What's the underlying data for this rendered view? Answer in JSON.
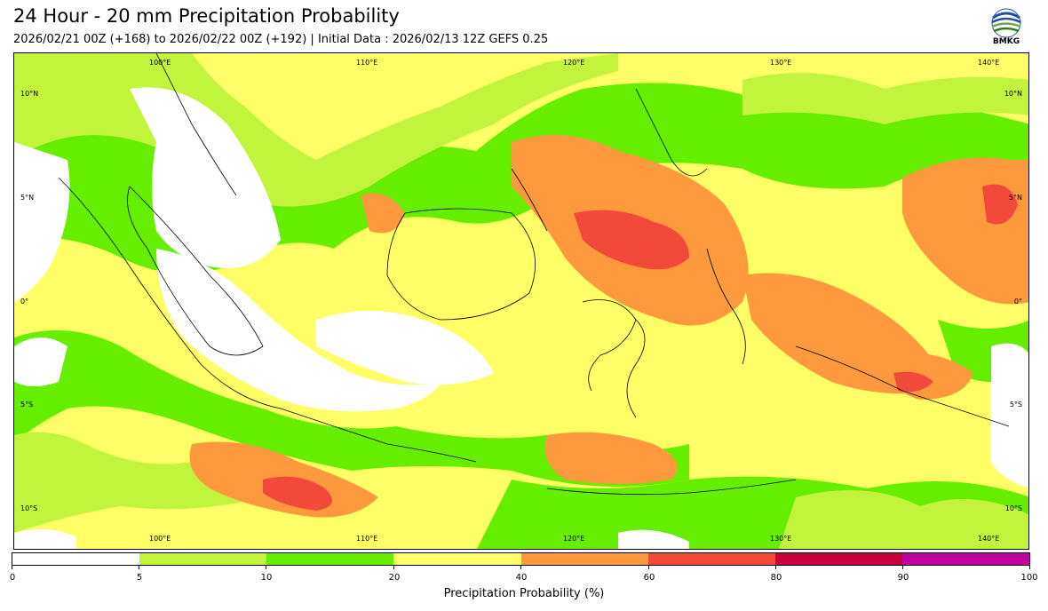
{
  "header": {
    "title": "24 Hour - 20 mm Precipitation Probability",
    "subtitle": "2026/02/21 00Z (+168) to 2026/02/22 00Z (+192) | Initial Data : 2026/02/13 12Z GEFS 0.25",
    "logo_text": "BMKG"
  },
  "map": {
    "lon_labels": [
      "100°E",
      "110°E",
      "120°E",
      "130°E",
      "140°E"
    ],
    "lat_labels": [
      "10°N",
      "5°N",
      "0°",
      "5°S",
      "10°S"
    ],
    "colors": {
      "c0": "#ffffff",
      "c5": "#c2f43c",
      "c10": "#66ee00",
      "c20": "#ffff66",
      "c40": "#fe9a3d",
      "c60": "#f24a3a",
      "c80": "#c8003c",
      "c90": "#c000a0"
    }
  },
  "colorbar": {
    "ticks": [
      "0",
      "5",
      "10",
      "20",
      "40",
      "60",
      "80",
      "90",
      "100"
    ],
    "label": "Precipitation Probability (%)"
  }
}
